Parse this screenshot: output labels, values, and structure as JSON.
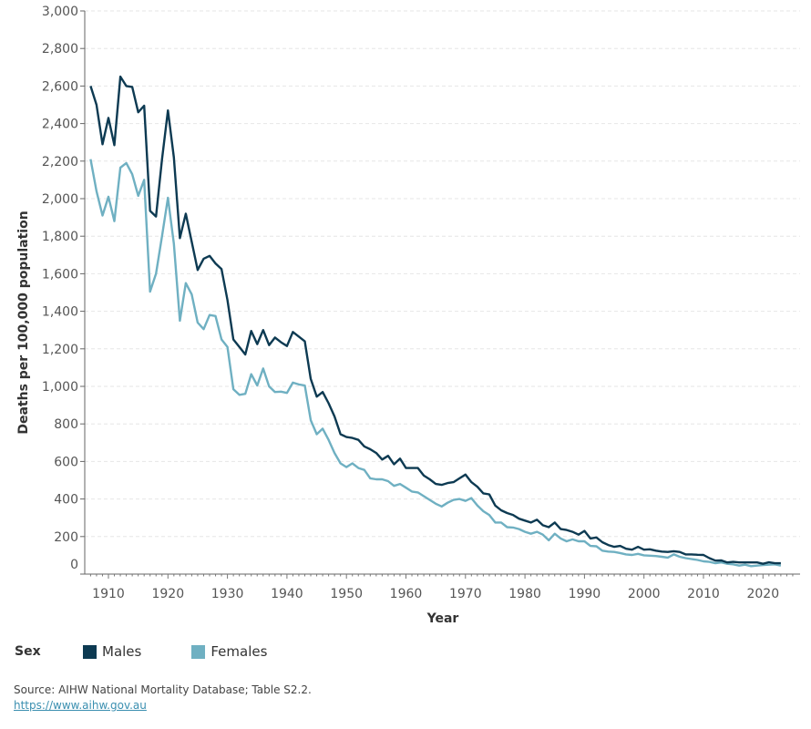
{
  "chart_data": {
    "type": "line",
    "title": "",
    "xlabel": "Year",
    "ylabel": "Deaths per 100,000 population",
    "xlim": [
      1906,
      2026
    ],
    "ylim": [
      0,
      3000
    ],
    "x_ticks": [
      1910,
      1920,
      1930,
      1940,
      1950,
      1960,
      1970,
      1980,
      1990,
      2000,
      2010,
      2020
    ],
    "x_tick_labels": [
      "1910",
      "1920",
      "1930",
      "1940",
      "1950",
      "1960",
      "1970",
      "1980",
      "1990",
      "2000",
      "2010",
      "2020"
    ],
    "y_ticks": [
      0,
      200,
      400,
      600,
      800,
      1000,
      1200,
      1400,
      1600,
      1800,
      2000,
      2200,
      2400,
      2600,
      2800,
      3000
    ],
    "y_tick_labels": [
      "0",
      "200",
      "400",
      "600",
      "800",
      "1,000",
      "1,200",
      "1,400",
      "1,600",
      "1,800",
      "2,000",
      "2,200",
      "2,400",
      "2,600",
      "2,800",
      "3,000"
    ],
    "grid": true,
    "legend_title": "Sex",
    "legend_position": "bottom-left",
    "x_start": 1907,
    "series": [
      {
        "name": "Males",
        "color": "#0d3a52",
        "values": [
          2600,
          2500,
          2290,
          2430,
          2285,
          2650,
          2600,
          2595,
          2460,
          2495,
          1935,
          1905,
          2210,
          2470,
          2220,
          1790,
          1920,
          1770,
          1620,
          1680,
          1695,
          1655,
          1625,
          1460,
          1250,
          1210,
          1170,
          1295,
          1225,
          1300,
          1220,
          1260,
          1235,
          1215,
          1290,
          1265,
          1240,
          1040,
          945,
          970,
          910,
          840,
          745,
          730,
          725,
          715,
          680,
          665,
          645,
          610,
          630,
          585,
          615,
          565,
          565,
          565,
          525,
          505,
          480,
          475,
          485,
          490,
          510,
          530,
          490,
          465,
          430,
          425,
          365,
          340,
          325,
          315,
          295,
          285,
          275,
          290,
          260,
          250,
          275,
          240,
          235,
          225,
          210,
          230,
          190,
          195,
          170,
          155,
          145,
          150,
          135,
          130,
          145,
          130,
          132,
          125,
          120,
          118,
          122,
          118,
          105,
          105,
          103,
          102,
          85,
          72,
          73,
          62,
          65,
          62,
          62,
          62,
          62,
          55,
          63,
          58,
          58
        ]
      },
      {
        "name": "Females",
        "color": "#6fb0c2",
        "values": [
          2210,
          2040,
          1910,
          2010,
          1880,
          2165,
          2190,
          2130,
          2015,
          2100,
          1505,
          1600,
          1800,
          2005,
          1760,
          1350,
          1550,
          1490,
          1340,
          1305,
          1380,
          1375,
          1250,
          1210,
          985,
          955,
          960,
          1065,
          1005,
          1095,
          1000,
          970,
          972,
          965,
          1020,
          1010,
          1005,
          820,
          745,
          775,
          715,
          645,
          590,
          570,
          590,
          565,
          555,
          510,
          505,
          505,
          495,
          470,
          480,
          460,
          440,
          435,
          415,
          395,
          375,
          360,
          380,
          395,
          400,
          390,
          405,
          365,
          335,
          315,
          275,
          275,
          250,
          248,
          240,
          225,
          215,
          225,
          210,
          180,
          215,
          190,
          175,
          185,
          175,
          175,
          150,
          148,
          125,
          120,
          118,
          112,
          105,
          102,
          108,
          100,
          98,
          96,
          92,
          88,
          105,
          92,
          85,
          80,
          75,
          68,
          65,
          58,
          62,
          55,
          52,
          45,
          50,
          42,
          45,
          48,
          50,
          52,
          45
        ]
      }
    ]
  },
  "footer": {
    "source": "Source: AIHW National Mortality Database; Table S2.2.",
    "link": "https://www.aihw.gov.au"
  }
}
